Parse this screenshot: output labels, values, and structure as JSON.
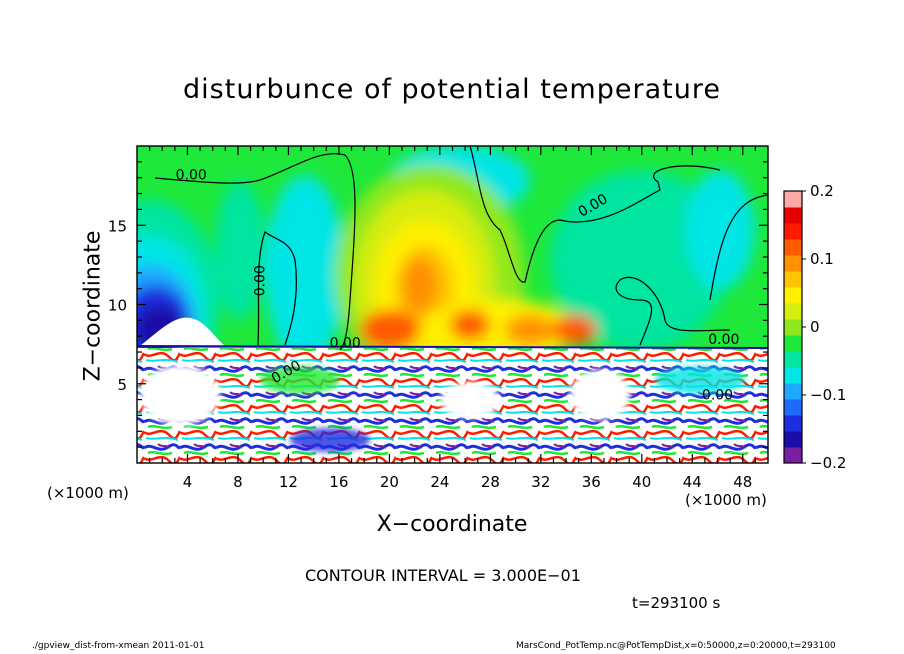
{
  "chart_data": {
    "type": "heatmap",
    "title": "disturbunce of potential temperature",
    "xlabel": "X−coordinate",
    "ylabel": "Z−coordinate",
    "x_unit_label": "(×1000 m)",
    "z_unit_label": "(×1000 m)",
    "xlim": [
      0,
      50
    ],
    "ylim": [
      0,
      20
    ],
    "x_ticks": [
      4,
      8,
      12,
      16,
      20,
      24,
      28,
      32,
      36,
      40,
      44,
      48
    ],
    "y_ticks": [
      5,
      10,
      15
    ],
    "colorbar": {
      "range": [
        -0.2,
        0.2
      ],
      "ticks": [
        0.2,
        0.1,
        0,
        -0.1,
        -0.2
      ],
      "tick_labels": [
        "0.2",
        "0.1",
        "0",
        "−0.1",
        "−0.2"
      ],
      "colors": [
        "#7a1fa2",
        "#1a0da8",
        "#1f2de0",
        "#1f6bff",
        "#1fa8ff",
        "#00e5e5",
        "#00e5a0",
        "#1ee83a",
        "#8fe81e",
        "#d8ec10",
        "#fff000",
        "#ffc400",
        "#ff9000",
        "#ff5a00",
        "#ff1a00",
        "#e80000",
        "#ffa8a8"
      ]
    },
    "contour_labels": [
      "0.00",
      "0.00",
      "0.00",
      "0.00",
      "0.00",
      "0.00",
      "0.00"
    ],
    "contour_interval_text": "CONTOUR INTERVAL = 3.000E−01",
    "time_text": "t=293100 s"
  },
  "footer": {
    "left": "./gpview_dist-from-xmean  2011-01-01",
    "right": "MarsCond_PotTemp.nc@PotTempDist,x=0:50000,z=0:20000,t=293100"
  }
}
